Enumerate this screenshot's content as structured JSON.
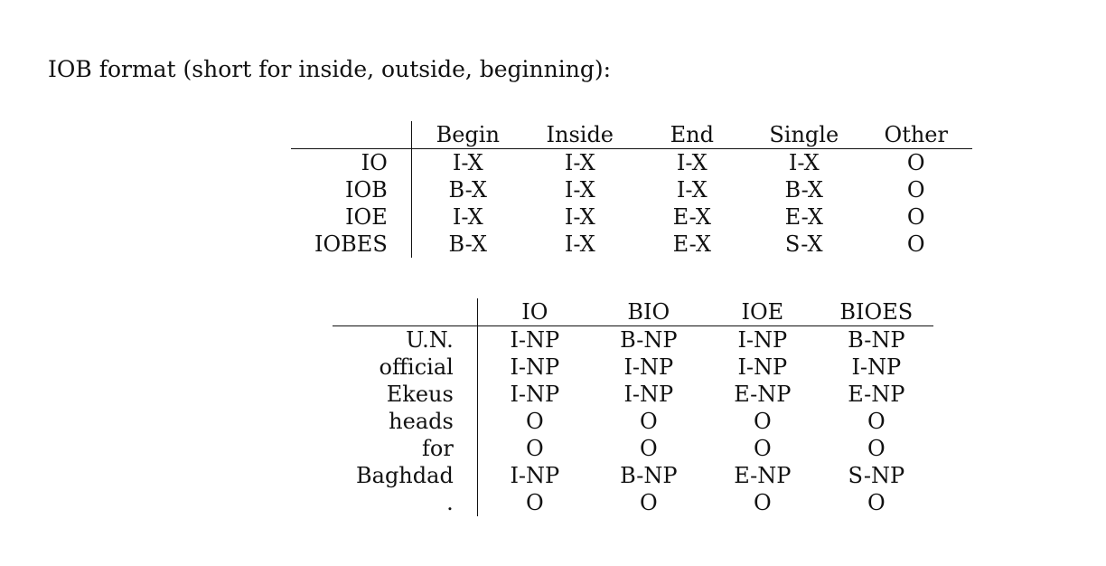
{
  "intro": "IOB format (short for inside, outside, beginning):",
  "table1": {
    "columns": [
      "Begin",
      "Inside",
      "End",
      "Single",
      "Other"
    ],
    "rows": [
      {
        "label": "IO",
        "cells": [
          "I-X",
          "I-X",
          "I-X",
          "I-X",
          "O"
        ]
      },
      {
        "label": "IOB",
        "cells": [
          "B-X",
          "I-X",
          "I-X",
          "B-X",
          "O"
        ]
      },
      {
        "label": "IOE",
        "cells": [
          "I-X",
          "I-X",
          "E-X",
          "E-X",
          "O"
        ]
      },
      {
        "label": "IOBES",
        "cells": [
          "B-X",
          "I-X",
          "E-X",
          "S-X",
          "O"
        ]
      }
    ]
  },
  "table2": {
    "columns": [
      "IO",
      "BIO",
      "IOE",
      "BIOES"
    ],
    "rows": [
      {
        "label": "U.N.",
        "cells": [
          "I-NP",
          "B-NP",
          "I-NP",
          "B-NP"
        ]
      },
      {
        "label": "official",
        "cells": [
          "I-NP",
          "I-NP",
          "I-NP",
          "I-NP"
        ]
      },
      {
        "label": "Ekeus",
        "cells": [
          "I-NP",
          "I-NP",
          "E-NP",
          "E-NP"
        ]
      },
      {
        "label": "heads",
        "cells": [
          "O",
          "O",
          "O",
          "O"
        ]
      },
      {
        "label": "for",
        "cells": [
          "O",
          "O",
          "O",
          "O"
        ]
      },
      {
        "label": "Baghdad",
        "cells": [
          "I-NP",
          "B-NP",
          "E-NP",
          "S-NP"
        ]
      },
      {
        "label": ".",
        "cells": [
          "O",
          "O",
          "O",
          "O"
        ]
      }
    ]
  }
}
